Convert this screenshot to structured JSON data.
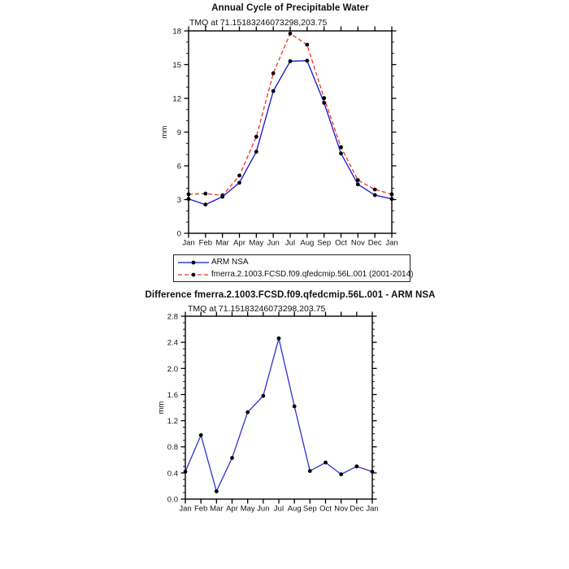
{
  "page": {
    "background": "#ffffff"
  },
  "colors": {
    "axis": "#000000",
    "text": "#111111",
    "marker": "#000000",
    "arm_nsa_line": "#1414cd",
    "model_line": "#ea3423",
    "diff_line": "#3030cd"
  },
  "legend": {
    "items": [
      {
        "label": "ARM NSA",
        "style": "solid",
        "color": "#1414cd"
      },
      {
        "label": "fmerra.2.1003.FCSD.f09.qfedcmip.56L.001 (2001-2014)",
        "style": "dashed",
        "color": "#ea3423"
      }
    ]
  },
  "chart_data": [
    {
      "type": "line",
      "title": "Annual Cycle of Precipitable Water",
      "subtitle": "TMQ at 71.15183246073298,203.75",
      "xlabel": "",
      "ylabel": "mm",
      "categories": [
        "Jan",
        "Feb",
        "Mar",
        "Apr",
        "May",
        "Jun",
        "Jul",
        "Aug",
        "Sep",
        "Oct",
        "Nov",
        "Dec",
        "Jan"
      ],
      "ylim": [
        0,
        18
      ],
      "yticks": [
        0,
        3,
        6,
        9,
        12,
        15,
        18
      ],
      "ytick_labels": [
        "0",
        "3",
        "6",
        "9",
        "12",
        "15",
        "18"
      ],
      "yminor_step": 1.0,
      "grid": false,
      "legend_position": "below-left",
      "series": [
        {
          "name": "ARM NSA",
          "color": "#1414cd",
          "dash": "solid",
          "marker": "filled-circle",
          "values": [
            3.05,
            2.55,
            3.25,
            4.5,
            7.25,
            12.65,
            15.3,
            15.35,
            11.6,
            7.1,
            4.35,
            3.4,
            3.05
          ]
        },
        {
          "name": "fmerra.2.1003.FCSD.f09.qfedcmip.56L.001 (2001-2014)",
          "color": "#ea3423",
          "dash": "dashed",
          "marker": "filled-circle",
          "values": [
            3.47,
            3.53,
            3.37,
            5.13,
            8.58,
            14.23,
            17.76,
            16.77,
            12.03,
            7.66,
            4.73,
            3.9,
            3.47
          ]
        }
      ]
    },
    {
      "type": "line",
      "title": "Difference fmerra.2.1003.FCSD.f09.qfedcmip.56L.001 - ARM NSA",
      "subtitle": "TMQ at 71.15183246073298,203.75",
      "xlabel": "",
      "ylabel": "mm",
      "categories": [
        "Jan",
        "Feb",
        "Mar",
        "Apr",
        "May",
        "Jun",
        "Jul",
        "Aug",
        "Sep",
        "Oct",
        "Nov",
        "Dec",
        "Jan"
      ],
      "ylim": [
        0,
        2.8
      ],
      "yticks": [
        0,
        0.4,
        0.8,
        1.2,
        1.6,
        2.0,
        2.4,
        2.8
      ],
      "ytick_labels": [
        "0.0",
        "0.4",
        "0.8",
        "1.2",
        "1.6",
        "2.0",
        "2.4",
        "2.8"
      ],
      "yminor_step": 0.1,
      "grid": false,
      "legend_position": "none",
      "series": [
        {
          "name": "difference",
          "color": "#3030cd",
          "dash": "solid",
          "marker": "filled-circle",
          "values": [
            0.42,
            0.98,
            0.12,
            0.63,
            1.33,
            1.58,
            2.46,
            1.42,
            0.43,
            0.56,
            0.38,
            0.5,
            0.42
          ]
        }
      ]
    }
  ]
}
